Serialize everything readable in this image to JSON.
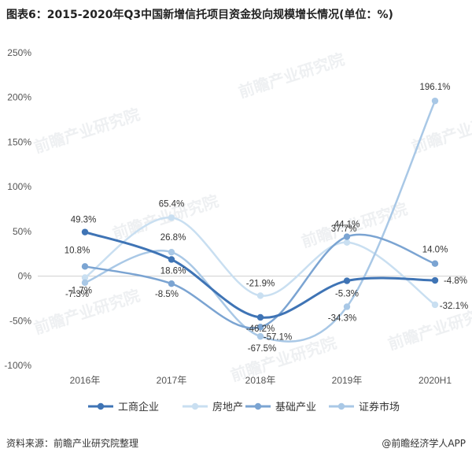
{
  "title": "图表6：2015-2020年Q3中国新增信托项目资金投向规模增长情况(单位：%)",
  "footer": {
    "source": "资料来源：前瞻产业研究院整理",
    "brand": "@前瞻经济学人APP"
  },
  "watermark": "前瞻产业研究院",
  "chart_data": {
    "type": "line",
    "title": "图表6：2015-2020年Q3中国新增信托项目资金投向规模增长情况(单位：%)",
    "categories": [
      "2016年",
      "2017年",
      "2018年",
      "2019年",
      "2020H1"
    ],
    "ylim": [
      -100,
      250
    ],
    "yticks": [
      250,
      200,
      150,
      100,
      50,
      0,
      -50,
      -100
    ],
    "ytick_labels": [
      "250%",
      "200%",
      "150%",
      "100%",
      "50%",
      "0%",
      "-50%",
      "-100%"
    ],
    "grid": false,
    "legend_position": "bottom",
    "smooth": true,
    "series": [
      {
        "name": "工商企业",
        "color": "#3f74b5",
        "values": [
          49.3,
          18.6,
          -46.2,
          -5.3,
          -4.8
        ],
        "labels": [
          "49.3%",
          "18.6%",
          "-46.2%",
          "-5.3%",
          "-4.8%"
        ],
        "width": 3
      },
      {
        "name": "房地产",
        "color": "#c9dff1",
        "values": [
          -1.7,
          65.4,
          -21.9,
          37.7,
          -32.1
        ],
        "labels": [
          "-1.7%",
          "65.4%",
          "-21.9%",
          "37.7%",
          "-32.1%"
        ],
        "width": 2.5
      },
      {
        "name": "基础产业",
        "color": "#7ba4d2",
        "values": [
          10.8,
          -8.5,
          -57.1,
          44.1,
          14.0
        ],
        "labels": [
          "10.8%",
          "-8.5%",
          "-57.1%",
          "44.1%",
          "14.0%"
        ],
        "width": 2.5
      },
      {
        "name": "证券市场",
        "color": "#a9c8e6",
        "values": [
          -7.3,
          26.8,
          -67.5,
          -34.3,
          196.1
        ],
        "labels": [
          "-7.3%",
          "26.8%",
          "-67.5%",
          "-34.3%",
          "196.1%"
        ],
        "width": 2.5
      }
    ]
  }
}
